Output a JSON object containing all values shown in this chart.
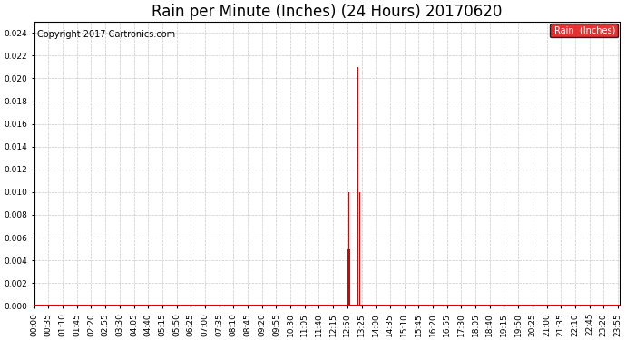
{
  "title": "Rain per Minute (Inches) (24 Hours) 20170620",
  "copyright_text": "Copyright 2017 Cartronics.com",
  "legend_label": "Rain  (Inches)",
  "legend_bg": "#dd0000",
  "legend_text_color": "#ffffff",
  "bar_color": "#dd0000",
  "baseline_color": "#dd0000",
  "background_color": "#ffffff",
  "plot_bg_color": "#ffffff",
  "grid_color": "#c8c8c8",
  "ylim": [
    0,
    0.025
  ],
  "yticks": [
    0.0,
    0.002,
    0.004,
    0.006,
    0.008,
    0.01,
    0.012,
    0.014,
    0.016,
    0.018,
    0.02,
    0.022,
    0.024
  ],
  "total_minutes": 1440,
  "rain_data": {
    "770": 0.01,
    "772": 0.005,
    "774": 0.01,
    "776": 0.005,
    "796": 0.021,
    "800": 0.01,
    "802": 0.005,
    "804": 0.01,
    "806": 0.01,
    "808": 0.005,
    "810": 0.005
  },
  "xtick_interval": 35,
  "title_fontsize": 12,
  "axis_fontsize": 6.5,
  "copyright_fontsize": 7
}
